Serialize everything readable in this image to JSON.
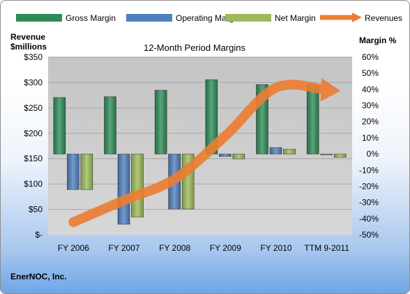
{
  "company": "EnerNOC, Inc.",
  "chart_data": {
    "type": "bar",
    "title": "12-Month Period Margins",
    "left_axis_title": [
      "Revenue",
      "$millions"
    ],
    "right_axis_title": "Margin %",
    "categories": [
      "FY 2006",
      "FY 2007",
      "FY 2008",
      "FY 2009",
      "FY 2010",
      "TTM 9-2011"
    ],
    "left_ticks": [
      "$350",
      "$300",
      "$250",
      "$200",
      "$150",
      "$100",
      "$50",
      "$-"
    ],
    "right_ticks": [
      "60%",
      "50%",
      "40%",
      "30%",
      "20%",
      "10%",
      "0%",
      "-10%",
      "-20%",
      "-30%",
      "-40%",
      "-50%"
    ],
    "ylim_left": [
      0,
      350
    ],
    "ylim_right": [
      -50,
      60
    ],
    "grid": true,
    "legend_position": "top",
    "series": [
      {
        "name": "Gross Margin",
        "axis": "right",
        "color": "#2e8b57",
        "values": [
          35,
          35.5,
          39.5,
          46,
          43,
          43
        ]
      },
      {
        "name": "Operating Margin",
        "axis": "right",
        "color": "#4f7fbd",
        "values": [
          -22,
          -43.5,
          -34,
          -1.5,
          4,
          -0.5
        ]
      },
      {
        "name": "Net Margin",
        "axis": "right",
        "color": "#9bbb59",
        "values": [
          -22,
          -39,
          -34,
          -3,
          3,
          -2
        ]
      },
      {
        "name": "Revenues",
        "axis": "left",
        "type": "line",
        "color": "#ed7d31",
        "values": [
          25,
          68,
          110,
          195,
          290,
          285
        ]
      }
    ]
  }
}
